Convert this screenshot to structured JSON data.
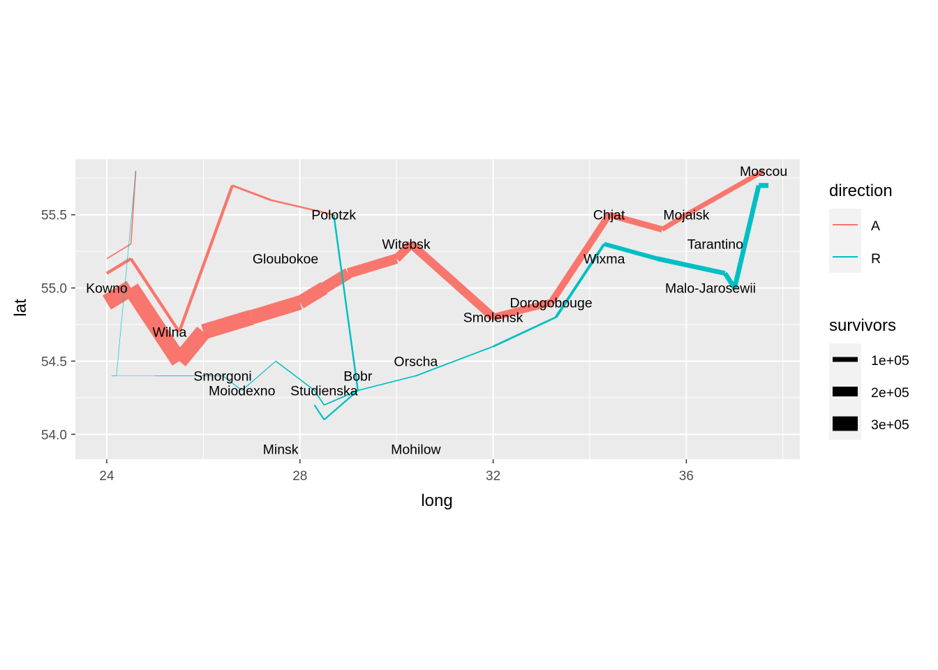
{
  "chart_data": {
    "type": "line",
    "title": "",
    "xlabel": "long",
    "ylabel": "lat",
    "xlim": [
      23.35,
      38.35
    ],
    "ylim": [
      53.83,
      55.88
    ],
    "x_ticks": [
      24,
      28,
      32,
      36
    ],
    "x_minor": [
      26,
      30,
      34,
      38
    ],
    "y_ticks": [
      54.0,
      54.5,
      55.0,
      55.5
    ],
    "y_tick_labels": [
      "54.0",
      "54.5",
      "55.0",
      "55.5"
    ],
    "y_minor": [
      54.25,
      54.75,
      55.25,
      55.75
    ],
    "grid": true,
    "legend_position": "right",
    "colors": {
      "A": "#F8766D",
      "R": "#00BFC4",
      "panel": "#EBEBEB",
      "grid": "#FFFFFF"
    },
    "series": [
      {
        "name": "A",
        "group": 1,
        "x": [
          24.0,
          24.5,
          25.5,
          26.0,
          27.0,
          28.0,
          28.5,
          29.0,
          30.0,
          30.3
        ],
        "y": [
          54.9,
          55.0,
          54.5,
          54.7,
          54.8,
          54.9,
          55.0,
          55.1,
          55.2,
          55.3
        ],
        "survivors": [
          340000,
          340000,
          340000,
          320000,
          300000,
          280000,
          240000,
          210000,
          180000,
          175000
        ]
      },
      {
        "name": "A",
        "group": 1,
        "x": [
          30.3,
          32.0,
          33.2,
          34.4,
          35.5,
          36.0,
          37.6
        ],
        "y": [
          55.3,
          54.8,
          54.9,
          55.5,
          55.4,
          55.5,
          55.8
        ],
        "survivors": [
          175000,
          145000,
          140000,
          127100,
          100000,
          100000,
          100000
        ]
      },
      {
        "name": "R",
        "group": 1,
        "x": [
          37.7,
          37.5,
          37.0,
          36.8,
          35.4,
          34.3,
          33.3,
          32.0,
          30.4,
          29.2,
          28.5,
          28.3
        ],
        "y": [
          55.7,
          55.7,
          55.0,
          55.1,
          55.2,
          55.3,
          54.8,
          54.6,
          54.4,
          54.3,
          54.2,
          54.3
        ],
        "survivors": [
          100000,
          98000,
          97000,
          96000,
          87000,
          55000,
          37000,
          24000,
          20000,
          20000,
          20000,
          20000
        ]
      },
      {
        "name": "R",
        "group": 1,
        "x": [
          29.2,
          28.5,
          28.3,
          27.5,
          26.8,
          26.4,
          25.0,
          24.4,
          24.2,
          24.1
        ],
        "y": [
          54.3,
          54.2,
          54.3,
          54.5,
          54.3,
          54.4,
          54.4,
          54.4,
          54.4,
          54.4
        ],
        "survivors": [
          20000,
          20000,
          20000,
          14000,
          12000,
          8000,
          4000,
          4000,
          4000,
          4000
        ]
      },
      {
        "name": "A",
        "group": 2,
        "x": [
          24.0,
          24.5,
          25.5,
          26.6,
          27.4,
          28.7
        ],
        "y": [
          55.1,
          55.2,
          54.7,
          55.7,
          55.6,
          55.5
        ],
        "survivors": [
          60000,
          60000,
          60000,
          40000,
          33000,
          33000
        ]
      },
      {
        "name": "R",
        "group": 2,
        "x": [
          28.7,
          29.2,
          28.5,
          28.3
        ],
        "y": [
          55.5,
          54.3,
          54.1,
          54.2
        ],
        "survivors": [
          33000,
          30000,
          28000,
          28000
        ]
      },
      {
        "name": "A",
        "group": 3,
        "x": [
          24.0,
          24.5,
          24.6
        ],
        "y": [
          55.2,
          55.3,
          55.8
        ],
        "survivors": [
          22000,
          22000,
          6000
        ]
      },
      {
        "name": "R",
        "group": 3,
        "x": [
          24.6,
          24.2,
          24.1
        ],
        "y": [
          55.8,
          54.4,
          54.4
        ],
        "survivors": [
          6000,
          6000,
          6000
        ]
      }
    ],
    "cities": [
      {
        "name": "Kowno",
        "x": 24.0,
        "y": 55.0
      },
      {
        "name": "Wilna",
        "x": 25.3,
        "y": 54.7
      },
      {
        "name": "Smorgoni",
        "x": 26.4,
        "y": 54.4
      },
      {
        "name": "Moiodexno",
        "x": 26.8,
        "y": 54.3
      },
      {
        "name": "Gloubokoe",
        "x": 27.7,
        "y": 55.2
      },
      {
        "name": "Minsk",
        "x": 27.6,
        "y": 53.9
      },
      {
        "name": "Studienska",
        "x": 28.5,
        "y": 54.3
      },
      {
        "name": "Polotzk",
        "x": 28.7,
        "y": 55.5
      },
      {
        "name": "Bobr",
        "x": 29.2,
        "y": 54.4
      },
      {
        "name": "Witebsk",
        "x": 30.2,
        "y": 55.3
      },
      {
        "name": "Orscha",
        "x": 30.4,
        "y": 54.5
      },
      {
        "name": "Mohilow",
        "x": 30.4,
        "y": 53.9
      },
      {
        "name": "Smolensk",
        "x": 32.0,
        "y": 54.8
      },
      {
        "name": "Dorogobouge",
        "x": 33.2,
        "y": 54.9
      },
      {
        "name": "Wixma",
        "x": 34.3,
        "y": 55.2
      },
      {
        "name": "Chjat",
        "x": 34.4,
        "y": 55.5
      },
      {
        "name": "Mojaisk",
        "x": 36.0,
        "y": 55.5
      },
      {
        "name": "Moscou",
        "x": 37.6,
        "y": 55.8
      },
      {
        "name": "Tarantino",
        "x": 36.6,
        "y": 55.3
      },
      {
        "name": "Malo-Jarosewii",
        "x": 36.5,
        "y": 55.0
      }
    ],
    "legend": {
      "direction": {
        "title": "direction",
        "entries": [
          "A",
          "R"
        ]
      },
      "survivors": {
        "title": "survivors",
        "entries": [
          {
            "label": "1e+05",
            "value": 100000
          },
          {
            "label": "2e+05",
            "value": 200000
          },
          {
            "label": "3e+05",
            "value": 300000
          }
        ]
      }
    }
  }
}
